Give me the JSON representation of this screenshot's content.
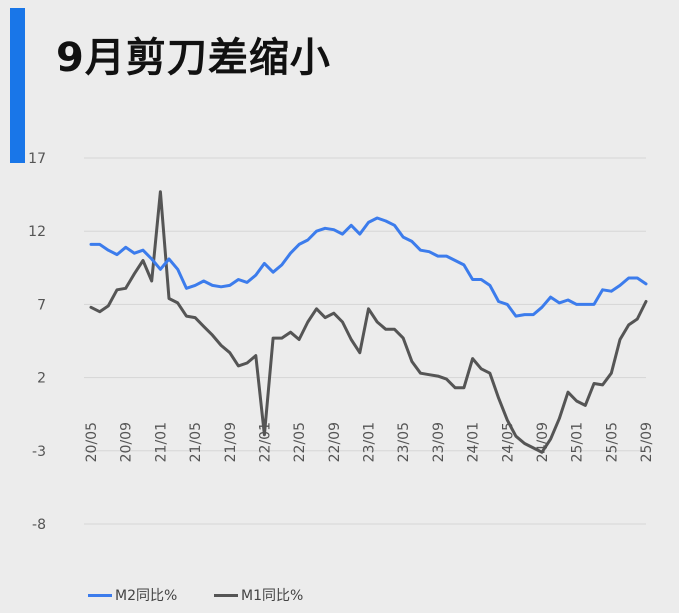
{
  "title": "9月剪刀差缩小",
  "colors": {
    "accent": "#1976e8",
    "m2": "#3c7cec",
    "m1": "#555555",
    "grid": "#d6d6d6"
  },
  "chart_data": {
    "type": "line",
    "title": "9月剪刀差缩小",
    "xlabel": "",
    "ylabel": "",
    "ylim": [
      -8,
      17
    ],
    "yticks": [
      17,
      12,
      7,
      2,
      -3,
      -8
    ],
    "xtick_labels": [
      "20/05",
      "20/09",
      "21/01",
      "21/05",
      "21/09",
      "22/01",
      "22/05",
      "22/09",
      "23/01",
      "23/05",
      "23/09",
      "24/01",
      "24/05",
      "24/09",
      "25/01",
      "25/05",
      "25/09"
    ],
    "x": [
      "20/05",
      "20/06",
      "20/07",
      "20/08",
      "20/09",
      "20/10",
      "20/11",
      "20/12",
      "21/01",
      "21/02",
      "21/03",
      "21/04",
      "21/05",
      "21/06",
      "21/07",
      "21/08",
      "21/09",
      "21/10",
      "21/11",
      "21/12",
      "22/01",
      "22/02",
      "22/03",
      "22/04",
      "22/05",
      "22/06",
      "22/07",
      "22/08",
      "22/09",
      "22/10",
      "22/11",
      "22/12",
      "23/01",
      "23/02",
      "23/03",
      "23/04",
      "23/05",
      "23/06",
      "23/07",
      "23/08",
      "23/09",
      "23/10",
      "23/11",
      "23/12",
      "24/01",
      "24/02",
      "24/03",
      "24/04",
      "24/05",
      "24/06",
      "24/07",
      "24/08",
      "24/09",
      "24/10",
      "24/11",
      "24/12",
      "25/01",
      "25/02",
      "25/03",
      "25/04",
      "25/05",
      "25/06",
      "25/07",
      "25/08",
      "25/09"
    ],
    "grid": true,
    "legend_position": "bottom-left",
    "series": [
      {
        "name": "M2同比%",
        "color": "#3c7cec",
        "values": [
          11.1,
          11.1,
          10.7,
          10.4,
          10.9,
          10.5,
          10.7,
          10.1,
          9.4,
          10.1,
          9.4,
          8.1,
          8.3,
          8.6,
          8.3,
          8.2,
          8.3,
          8.7,
          8.5,
          9.0,
          9.8,
          9.2,
          9.7,
          10.5,
          11.1,
          11.4,
          12.0,
          12.2,
          12.1,
          11.8,
          12.4,
          11.8,
          12.6,
          12.9,
          12.7,
          12.4,
          11.6,
          11.3,
          10.7,
          10.6,
          10.3,
          10.3,
          10.0,
          9.7,
          8.7,
          8.7,
          8.3,
          7.2,
          7.0,
          6.2,
          6.3,
          6.3,
          6.8,
          7.5,
          7.1,
          7.3,
          7.0,
          7.0,
          7.0,
          8.0,
          7.9,
          8.3,
          8.8,
          8.8,
          8.4
        ]
      },
      {
        "name": "M1同比%",
        "color": "#555555",
        "values": [
          6.8,
          6.5,
          6.9,
          8.0,
          8.1,
          9.1,
          10.0,
          8.6,
          14.7,
          7.4,
          7.1,
          6.2,
          6.1,
          5.5,
          4.9,
          4.2,
          3.7,
          2.8,
          3.0,
          3.5,
          -1.9,
          4.7,
          4.7,
          5.1,
          4.6,
          5.8,
          6.7,
          6.1,
          6.4,
          5.8,
          4.6,
          3.7,
          6.7,
          5.8,
          5.3,
          5.3,
          4.7,
          3.1,
          2.3,
          2.2,
          2.1,
          1.9,
          1.3,
          1.3,
          3.3,
          2.6,
          2.3,
          0.6,
          -0.9,
          -2.0,
          -2.5,
          -2.8,
          -3.1,
          -2.2,
          -0.8,
          1.0,
          0.4,
          0.1,
          1.6,
          1.5,
          2.3,
          4.6,
          5.6,
          6.0,
          7.2
        ]
      }
    ]
  }
}
